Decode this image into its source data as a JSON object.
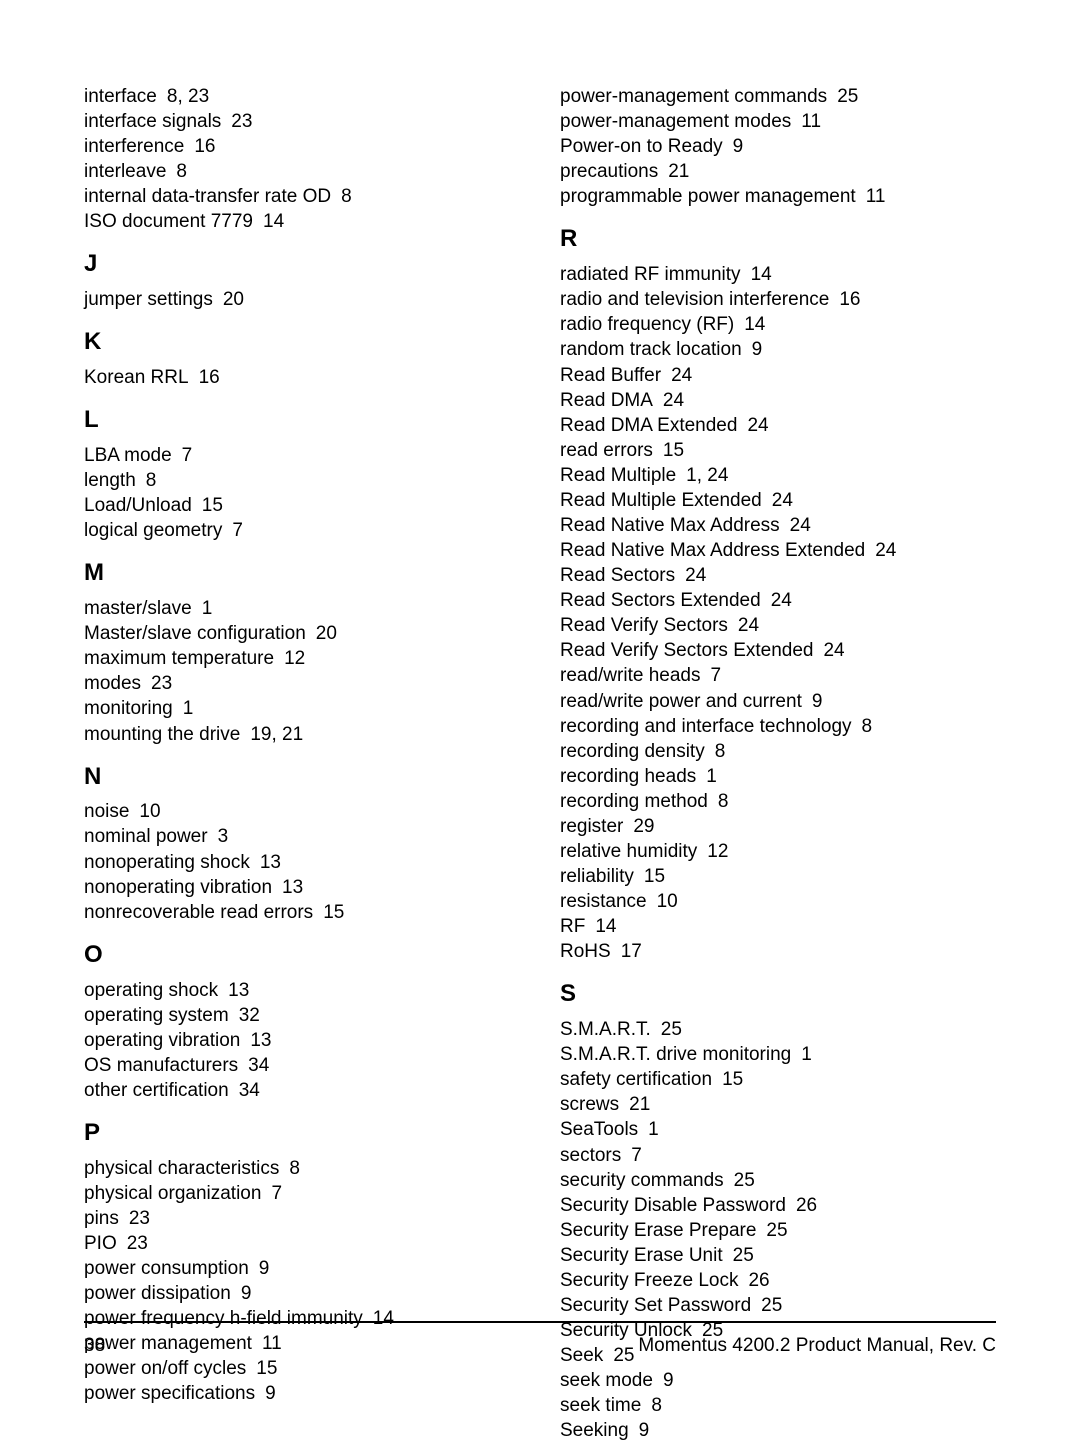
{
  "left": {
    "cont": [
      {
        "term": "interface",
        "pages": "8,   23"
      },
      {
        "term": "interface signals",
        "pages": "23"
      },
      {
        "term": "interference",
        "pages": "16"
      },
      {
        "term": "interleave",
        "pages": "8"
      },
      {
        "term": "internal data-transfer rate OD",
        "pages": "8"
      },
      {
        "term": "ISO document 7779",
        "pages": "14"
      }
    ],
    "sections": [
      {
        "heading": "J",
        "entries": [
          {
            "term": "jumper settings",
            "pages": "20"
          }
        ]
      },
      {
        "heading": "K",
        "entries": [
          {
            "term": "Korean RRL",
            "pages": "16"
          }
        ]
      },
      {
        "heading": "L",
        "entries": [
          {
            "term": "LBA mode",
            "pages": "7"
          },
          {
            "term": "length",
            "pages": "8"
          },
          {
            "term": "Load/Unload",
            "pages": "15"
          },
          {
            "term": "logical geometry",
            "pages": "7"
          }
        ]
      },
      {
        "heading": "M",
        "entries": [
          {
            "term": "master/slave",
            "pages": "1"
          },
          {
            "term": "Master/slave configuration",
            "pages": "20"
          },
          {
            "term": "maximum temperature",
            "pages": "12"
          },
          {
            "term": "modes",
            "pages": "23"
          },
          {
            "term": "monitoring",
            "pages": "1"
          },
          {
            "term": "mounting the drive",
            "pages": "19,   21"
          }
        ]
      },
      {
        "heading": "N",
        "entries": [
          {
            "term": "noise",
            "pages": "10"
          },
          {
            "term": "nominal power",
            "pages": "3"
          },
          {
            "term": "nonoperating shock",
            "pages": "13"
          },
          {
            "term": "nonoperating vibration",
            "pages": "13"
          },
          {
            "term": "nonrecoverable read errors",
            "pages": "15"
          }
        ]
      },
      {
        "heading": "O",
        "entries": [
          {
            "term": "operating shock",
            "pages": "13"
          },
          {
            "term": "operating system",
            "pages": "32"
          },
          {
            "term": "operating vibration",
            "pages": "13"
          },
          {
            "term": "OS manufacturers",
            "pages": "34"
          },
          {
            "term": "other certification",
            "pages": "34"
          }
        ]
      },
      {
        "heading": "P",
        "entries": [
          {
            "term": "physical characteristics",
            "pages": "8"
          },
          {
            "term": "physical organization",
            "pages": "7"
          },
          {
            "term": "pins",
            "pages": "23"
          },
          {
            "term": "PIO",
            "pages": "23"
          },
          {
            "term": "power consumption",
            "pages": "9"
          },
          {
            "term": "power dissipation",
            "pages": "9"
          },
          {
            "term": "power frequency h-field immunity",
            "pages": "14"
          },
          {
            "term": "power management",
            "pages": "11"
          },
          {
            "term": "power on/off cycles",
            "pages": "15"
          },
          {
            "term": "power specifications",
            "pages": "9"
          }
        ]
      }
    ]
  },
  "right": {
    "cont": [
      {
        "term": "power-management commands",
        "pages": "25"
      },
      {
        "term": "power-management modes",
        "pages": "11"
      },
      {
        "term": "Power-on to Ready",
        "pages": "9"
      },
      {
        "term": "precautions",
        "pages": "21"
      },
      {
        "term": "programmable power management",
        "pages": "11"
      }
    ],
    "sections": [
      {
        "heading": "R",
        "entries": [
          {
            "term": "radiated RF immunity",
            "pages": "14"
          },
          {
            "term": "radio and television interference",
            "pages": "16"
          },
          {
            "term": "radio frequency (RF)",
            "pages": "14"
          },
          {
            "term": "random track location",
            "pages": "9"
          },
          {
            "term": "Read Buffer",
            "pages": "24"
          },
          {
            "term": "Read DMA",
            "pages": "24"
          },
          {
            "term": "Read DMA Extended",
            "pages": "24"
          },
          {
            "term": "read errors",
            "pages": "15"
          },
          {
            "term": "Read Multiple",
            "pages": "1,   24"
          },
          {
            "term": "Read Multiple Extended",
            "pages": "24"
          },
          {
            "term": "Read Native Max Address",
            "pages": "24"
          },
          {
            "term": "Read Native Max Address Extended",
            "pages": "24"
          },
          {
            "term": "Read Sectors",
            "pages": "24"
          },
          {
            "term": "Read Sectors Extended",
            "pages": "24"
          },
          {
            "term": "Read Verify Sectors",
            "pages": "24"
          },
          {
            "term": "Read Verify Sectors Extended",
            "pages": "24"
          },
          {
            "term": "read/write heads",
            "pages": "7"
          },
          {
            "term": "read/write power and current",
            "pages": "9"
          },
          {
            "term": "recording and interface technology",
            "pages": "8"
          },
          {
            "term": "recording density",
            "pages": "8"
          },
          {
            "term": "recording heads",
            "pages": "1"
          },
          {
            "term": "recording method",
            "pages": "8"
          },
          {
            "term": "register",
            "pages": "29"
          },
          {
            "term": "relative humidity",
            "pages": "12"
          },
          {
            "term": "reliability",
            "pages": "15"
          },
          {
            "term": "resistance",
            "pages": "10"
          },
          {
            "term": "RF",
            "pages": "14"
          },
          {
            "term": "RoHS",
            "pages": "17"
          }
        ]
      },
      {
        "heading": "S",
        "entries": [
          {
            "term": "S.M.A.R.T.",
            "pages": "25"
          },
          {
            "term": "S.M.A.R.T. drive monitoring",
            "pages": "1"
          },
          {
            "term": "safety certification",
            "pages": "15"
          },
          {
            "term": "screws",
            "pages": "21"
          },
          {
            "term": "SeaTools",
            "pages": "1"
          },
          {
            "term": "sectors",
            "pages": "7"
          },
          {
            "term": "security commands",
            "pages": "25"
          },
          {
            "term": "Security Disable Password",
            "pages": "26"
          },
          {
            "term": "Security Erase Prepare",
            "pages": "25"
          },
          {
            "term": "Security Erase Unit",
            "pages": "25"
          },
          {
            "term": "Security Freeze Lock",
            "pages": "26"
          },
          {
            "term": "Security Set Password",
            "pages": "25"
          },
          {
            "term": "Security Unlock",
            "pages": "25"
          },
          {
            "term": "Seek",
            "pages": "25"
          },
          {
            "term": "seek mode",
            "pages": "9"
          },
          {
            "term": "seek time",
            "pages": "8"
          },
          {
            "term": "Seeking",
            "pages": "9"
          }
        ]
      }
    ]
  },
  "footer": {
    "page_number": "38",
    "doc_title": "Momentus 4200.2 Product Manual, Rev. C"
  }
}
